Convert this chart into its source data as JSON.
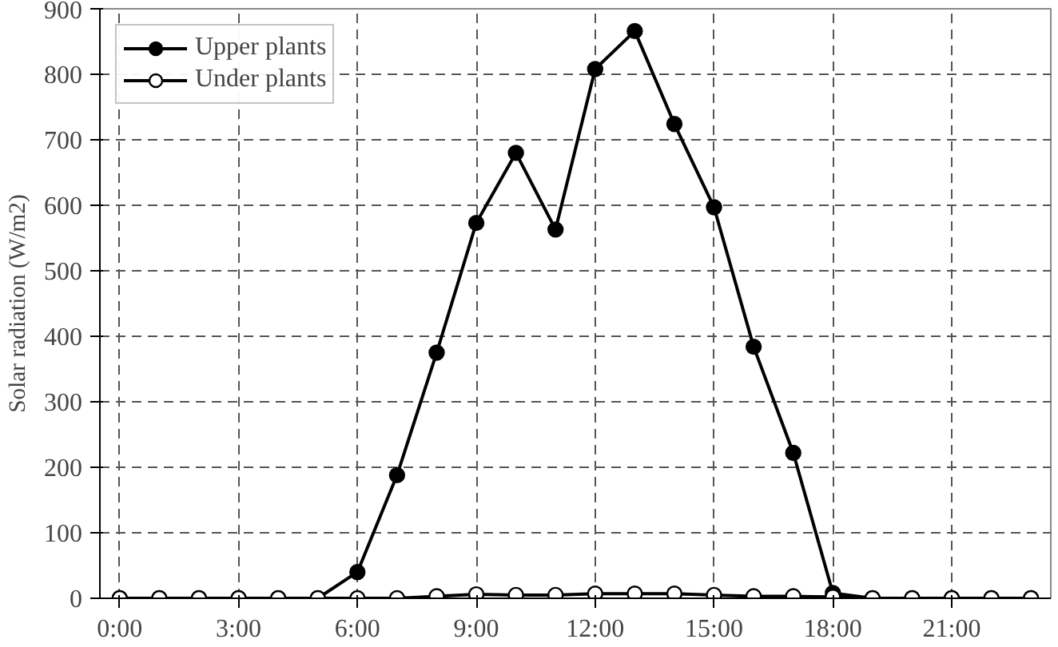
{
  "chart_data": {
    "type": "line",
    "ylabel": "Solar radiation (W/m2)",
    "x": [
      0,
      1,
      2,
      3,
      4,
      5,
      6,
      7,
      8,
      9,
      10,
      11,
      12,
      13,
      14,
      15,
      16,
      17,
      18,
      19,
      20,
      21,
      22,
      23
    ],
    "xlim": [
      -0.5,
      23.5
    ],
    "xticks": [
      {
        "value": 0,
        "label": "0:00"
      },
      {
        "value": 3,
        "label": "3:00"
      },
      {
        "value": 6,
        "label": "6:00"
      },
      {
        "value": 9,
        "label": "9:00"
      },
      {
        "value": 12,
        "label": "12:00"
      },
      {
        "value": 15,
        "label": "15:00"
      },
      {
        "value": 18,
        "label": "18:00"
      },
      {
        "value": 21,
        "label": "21:00"
      }
    ],
    "ylim": [
      0,
      900
    ],
    "yticks": [
      0,
      100,
      200,
      300,
      400,
      500,
      600,
      700,
      800,
      900
    ],
    "grid": true,
    "legend": "top left",
    "marker": "circle",
    "line_style": "solid",
    "series": [
      {
        "name": "Upper plants",
        "color": "#000000",
        "values": [
          0,
          0,
          0,
          0,
          0,
          0,
          40,
          188,
          375,
          573,
          680,
          563,
          808,
          866,
          724,
          597,
          384,
          222,
          8,
          0,
          0,
          0,
          0,
          0
        ]
      },
      {
        "name": "Under plants",
        "color": "#ffffff",
        "values": [
          0,
          0,
          0,
          0,
          0,
          0,
          0,
          0,
          3,
          6,
          5,
          5,
          7,
          7,
          7,
          5,
          3,
          3,
          2,
          0,
          0,
          0,
          0,
          0
        ]
      }
    ]
  }
}
